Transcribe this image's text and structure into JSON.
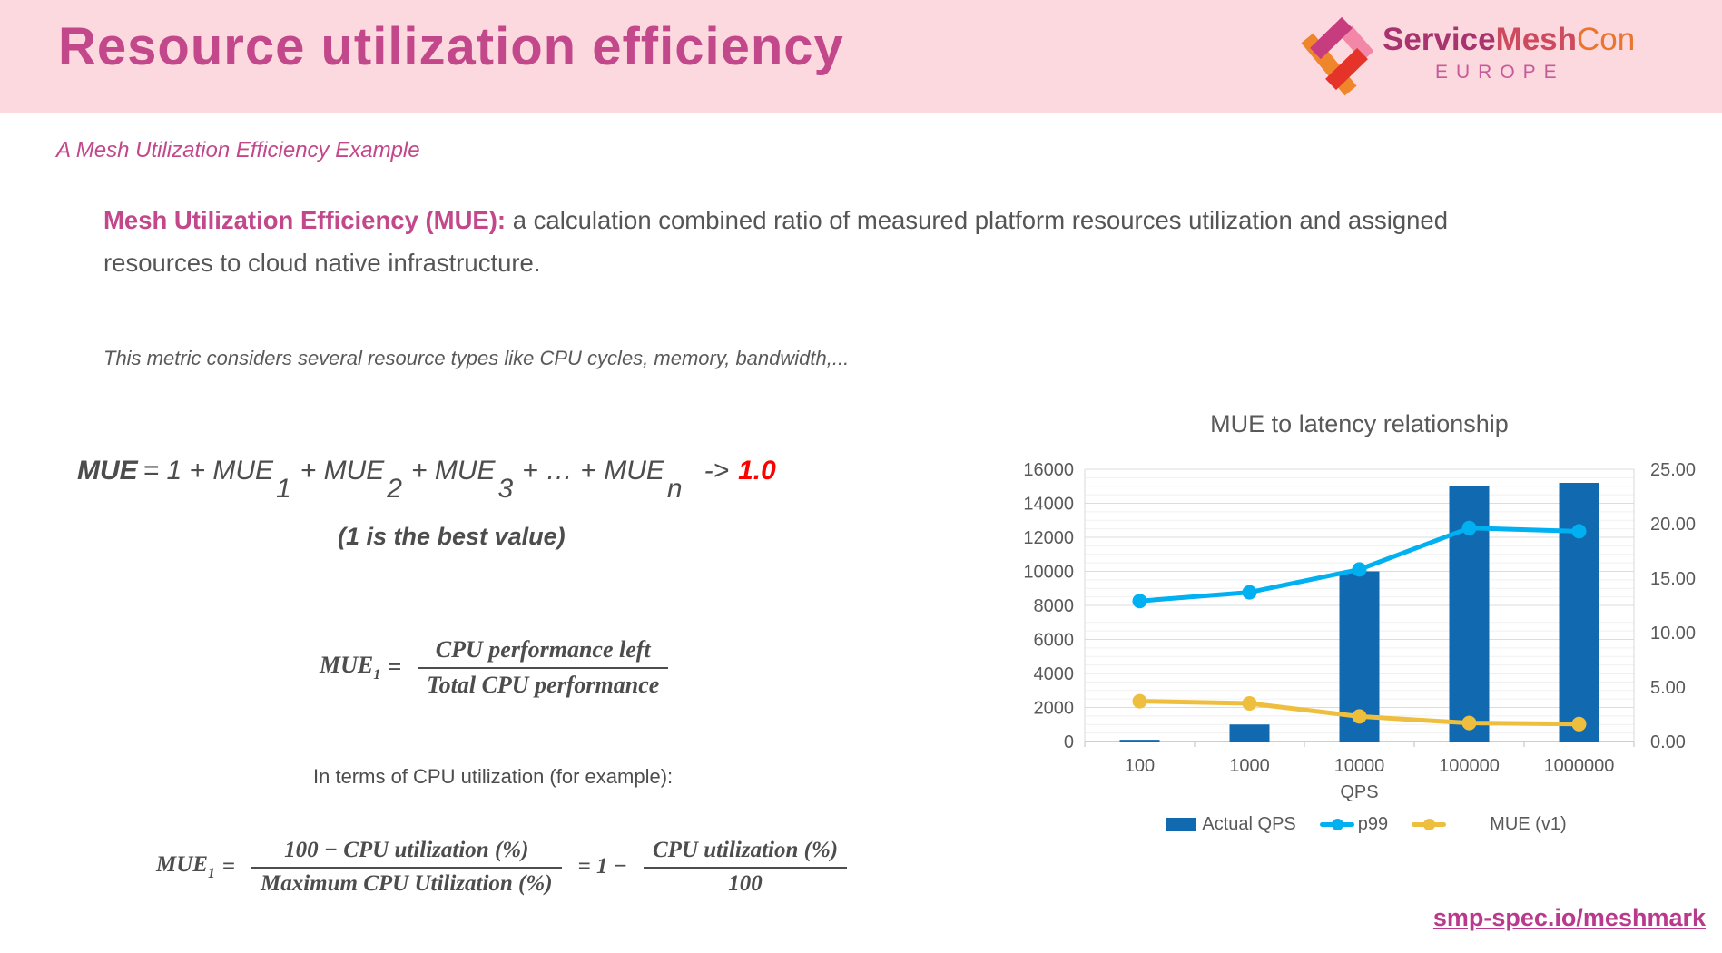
{
  "colors": {
    "header_bg": "#FBD9DE",
    "title_pink": "#C2478B",
    "text_grey": "#595959",
    "formula_grey": "#4D4D4D",
    "highlight_red": "#FF0000",
    "link_pink": "#B93A8C",
    "bar_blue": "#1169AF",
    "line_cyan": "#00B0F0",
    "line_yellow": "#EEBF3F",
    "logo_magenta": "#C73B7F",
    "logo_red": "#E5332A",
    "logo_orange": "#F0862B",
    "logo_pink": "#F287A8"
  },
  "header": {
    "title": "Resource utilization efficiency",
    "logo": {
      "service": "Service",
      "mesh": "Mesh",
      "con": "Con",
      "region": "EUROPE"
    }
  },
  "subtitle": "A Mesh Utilization Efficiency Example",
  "intro": {
    "lead": "Mesh Utilization Efficiency (MUE):",
    "body": " a calculation combined ratio of measured platform resources utilization and assigned resources to cloud native infrastructure."
  },
  "note": "This metric considers several resource types like CPU cycles, memory, bandwidth,...",
  "formula_sum": {
    "lhs": "MUE",
    "part1": "= 1 + MUE",
    "sub1": "1",
    "part2": "+ MUE",
    "sub2": "2",
    "part3": "+ MUE",
    "sub3": "3",
    "part4": "+ … + MUE",
    "subn": "n",
    "arrow": "->",
    "target": "1.0",
    "caption": "(1 is the best value)"
  },
  "formula_cpu": {
    "lhs": "MUE",
    "lhs_sub": "1",
    "equals": "=",
    "numerator": "CPU performance left",
    "denominator": "Total CPU performance"
  },
  "in_terms_label": "In terms of CPU utilization (for example):",
  "formula_util": {
    "lhs": "MUE",
    "lhs_sub": "1",
    "equals": "=",
    "num1": "100 − CPU utilization (%)",
    "den1": "Maximum CPU Utilization (%)",
    "mid": "= 1 −",
    "num2": "CPU utilization (%)",
    "den2": "100"
  },
  "chart_data": {
    "type": "bar",
    "subtype": "combo bar + line, dual y-axis",
    "title": "MUE to latency relationship",
    "categories": [
      "100",
      "1000",
      "10000",
      "100000",
      "1000000"
    ],
    "xlabel": "QPS",
    "left_axis": {
      "min": 0,
      "max": 16000,
      "step": 2000,
      "labels": [
        "0",
        "2000",
        "4000",
        "6000",
        "8000",
        "10000",
        "12000",
        "14000",
        "16000"
      ]
    },
    "right_axis": {
      "min": 0,
      "max": 25,
      "step": 5,
      "labels": [
        "0.00",
        "5.00",
        "10.00",
        "15.00",
        "20.00",
        "25.00"
      ]
    },
    "grid": true,
    "legend_position": "bottom",
    "series": [
      {
        "name": "Actual QPS",
        "kind": "bar",
        "axis": "left",
        "color": "#1169AF",
        "values": [
          100,
          1000,
          10000,
          15000,
          15200
        ]
      },
      {
        "name": "p99",
        "kind": "line",
        "axis": "right",
        "color": "#00B0F0",
        "values": [
          12.9,
          13.7,
          15.8,
          19.6,
          19.3
        ]
      },
      {
        "name": "MUE (v1)",
        "kind": "line",
        "axis": "right",
        "color": "#EEBF3F",
        "values": [
          3.7,
          3.5,
          2.3,
          1.7,
          1.6
        ]
      }
    ]
  },
  "footer": {
    "link": "smp-spec.io/meshmark"
  }
}
